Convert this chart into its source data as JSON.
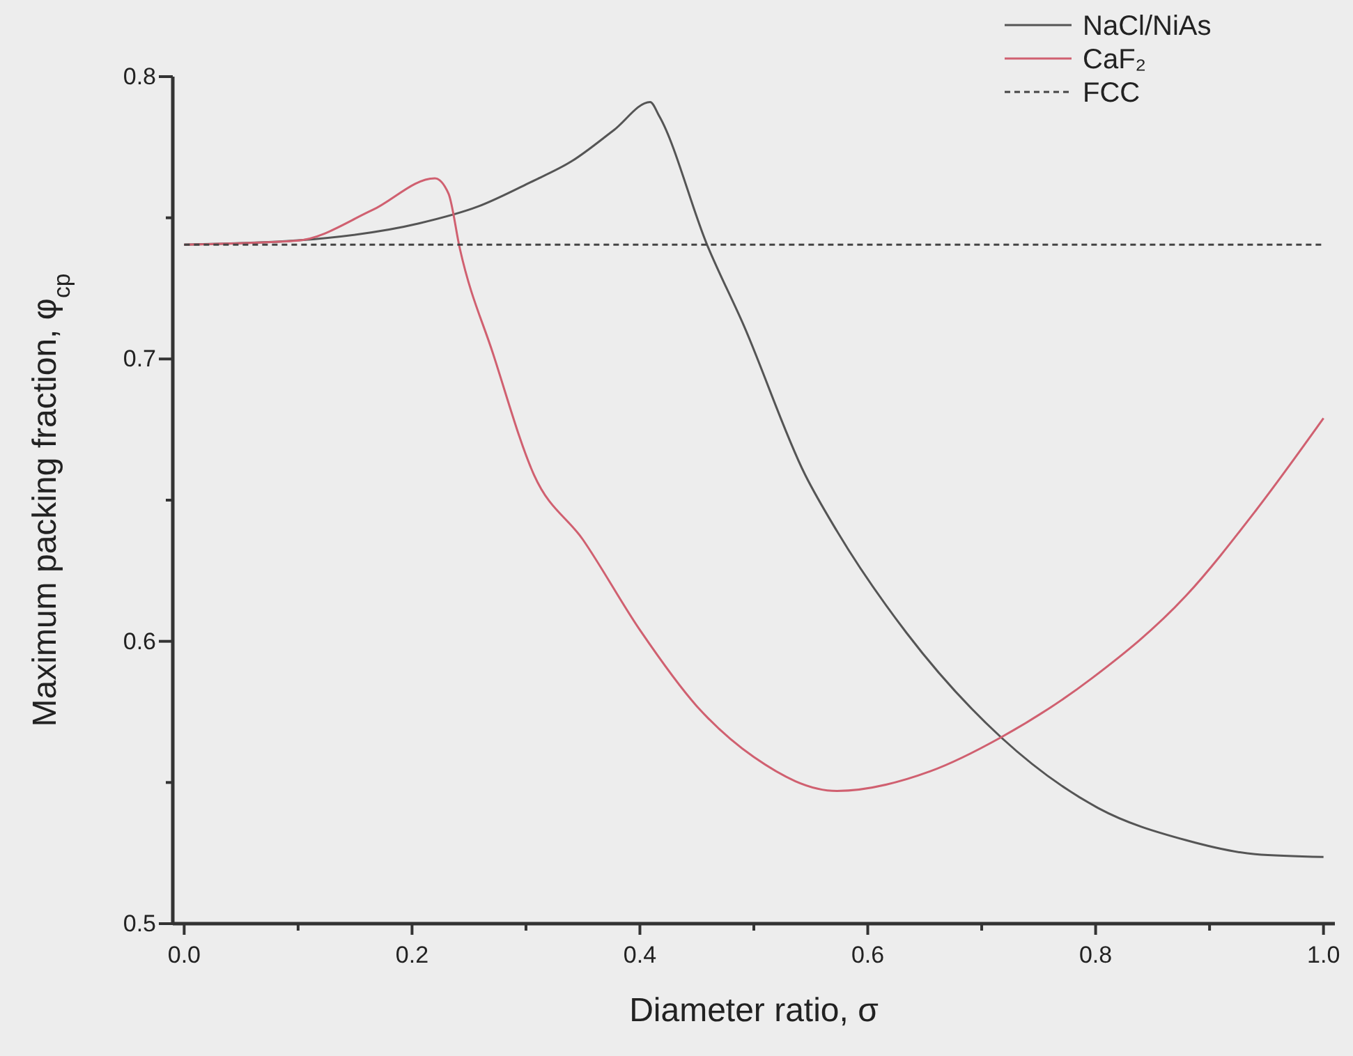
{
  "chart_data": {
    "type": "line",
    "xlabel": "Diameter ratio, σ",
    "ylabel": "Maximum packing fraction, φ$_{cp}$",
    "xlim": [
      -0.01,
      1.01
    ],
    "ylim": [
      0.5,
      0.8
    ],
    "xticks": [
      {
        "value": 0,
        "label": "0.0"
      },
      {
        "value": 0.1,
        "label": null
      },
      {
        "value": 0.2,
        "label": "0.2"
      },
      {
        "value": 0.3,
        "label": null
      },
      {
        "value": 0.4,
        "label": "0.4"
      },
      {
        "value": 0.5,
        "label": null
      },
      {
        "value": 0.6,
        "label": "0.6"
      },
      {
        "value": 0.7,
        "label": null
      },
      {
        "value": 0.8,
        "label": "0.8"
      },
      {
        "value": 0.9,
        "label": null
      },
      {
        "value": 1,
        "label": "1.0"
      }
    ],
    "yticks": [
      0.5,
      {
        "value": 0.55,
        "label": null
      },
      0.6,
      {
        "value": 0.65,
        "label": null
      },
      0.7,
      {
        "value": 0.75,
        "label": null
      },
      0.8
    ],
    "legend": "top right",
    "grid": false,
    "series": [
      {
        "name": "NaCl/NiAs",
        "color": "#555555",
        "x": [
          0,
          0.1,
          0.206,
          0.258,
          0.304,
          0.34,
          0.377,
          0.409,
          0.417,
          0.459,
          0.491,
          0.545,
          0.573,
          0.634,
          0.717,
          0.802,
          0.879,
          0.94,
          1.0
        ],
        "values": [
          0.7405,
          0.742,
          0.748,
          0.754,
          0.7626,
          0.77,
          0.781,
          0.791,
          0.786,
          0.7404,
          0.712,
          0.659,
          0.639,
          0.603,
          0.566,
          0.541,
          0.5296,
          0.5246,
          0.5236
        ]
      },
      {
        "name": "CaF₂",
        "color": "#d06070",
        "x": [
          0,
          0.099,
          0.165,
          0.22,
          0.232,
          0.242,
          0.271,
          0.307,
          0.35,
          0.4,
          0.45,
          0.5,
          0.573,
          0.655,
          0.717,
          0.797,
          0.879,
          0.94,
          1.0
        ],
        "values": [
          0.7405,
          0.7419,
          0.7527,
          0.764,
          0.7586,
          0.739,
          0.702,
          0.659,
          0.636,
          0.604,
          0.577,
          0.559,
          0.547,
          0.554,
          0.566,
          0.587,
          0.616,
          0.646,
          0.679
        ]
      },
      {
        "name": "FCC",
        "color": "#444444",
        "line_style": "dashed",
        "x": [
          0,
          1
        ],
        "values": [
          0.7405,
          0.7405
        ]
      }
    ]
  }
}
